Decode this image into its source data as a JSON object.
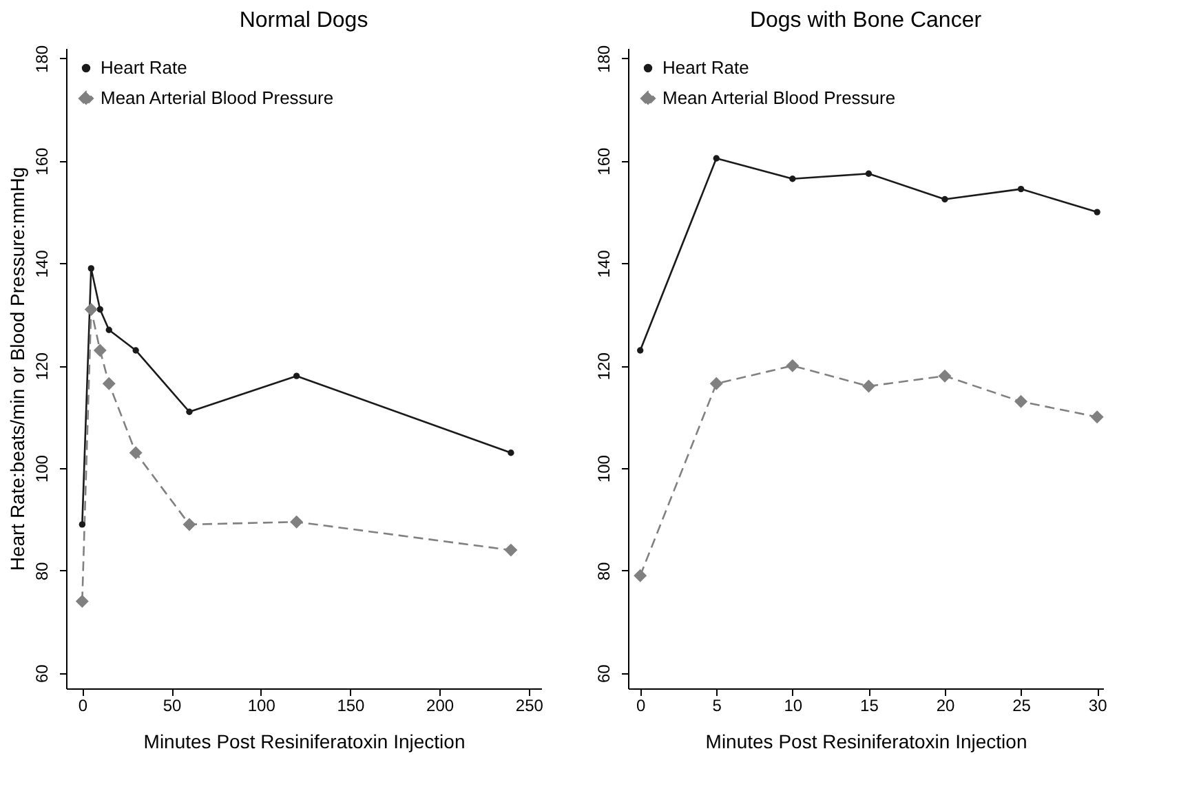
{
  "chart_data": [
    {
      "type": "line",
      "title": "Normal Dogs",
      "xlabel": "Minutes Post Resiniferatoxin Injection",
      "ylabel": "Heart Rate:beats/min or Blood Pressure:mmHg",
      "x": [
        0,
        5,
        10,
        15,
        30,
        60,
        120,
        240
      ],
      "series": [
        {
          "name": "Heart Rate",
          "color": "#1a1a1a",
          "marker": "circle",
          "line_style": "solid",
          "values": [
            89,
            139,
            131,
            127,
            123,
            111,
            118,
            103
          ]
        },
        {
          "name": "Mean Arterial Blood Pressure",
          "color": "#808080",
          "marker": "diamond",
          "line_style": "dashed",
          "values": [
            74,
            131,
            123,
            116.5,
            103,
            89,
            89.5,
            84
          ]
        }
      ],
      "xlim": [
        -9,
        257
      ],
      "xticks": [
        0,
        50,
        100,
        150,
        200,
        250
      ],
      "ylim": [
        57,
        182
      ],
      "yticks": [
        60,
        80,
        100,
        120,
        140,
        160,
        180
      ],
      "legend": "top left",
      "grid": false
    },
    {
      "type": "line",
      "title": "Dogs with Bone Cancer",
      "xlabel": "Minutes Post Resiniferatoxin Injection",
      "x": [
        0,
        5,
        10,
        15,
        20,
        25,
        30
      ],
      "series": [
        {
          "name": "Heart Rate",
          "color": "#1a1a1a",
          "marker": "circle",
          "line_style": "solid",
          "values": [
            123,
            160.5,
            156.5,
            157.5,
            152.5,
            154.5,
            150
          ]
        },
        {
          "name": "Mean Arterial Blood Pressure",
          "color": "#808080",
          "marker": "diamond",
          "line_style": "dashed",
          "values": [
            79,
            116.5,
            120,
            116,
            118,
            113,
            110
          ]
        }
      ],
      "xlim": [
        -0.8,
        30.4
      ],
      "xticks": [
        0,
        5,
        10,
        15,
        20,
        25,
        30
      ],
      "ylim": [
        57,
        182
      ],
      "yticks": [
        60,
        80,
        100,
        120,
        140,
        160,
        180
      ],
      "legend": "top left",
      "grid": false
    }
  ]
}
